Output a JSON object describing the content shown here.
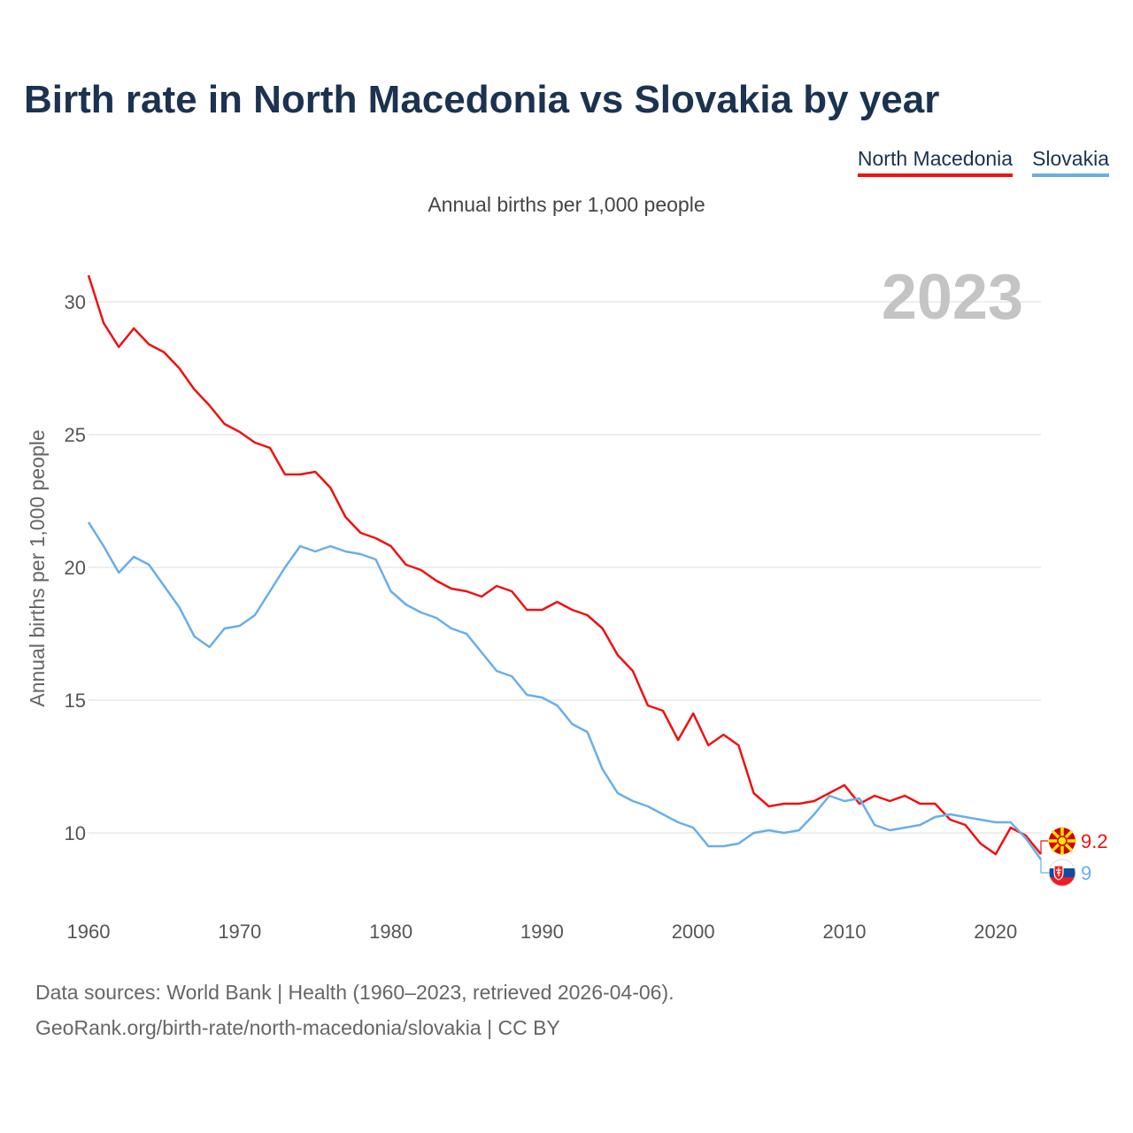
{
  "title": "Birth rate in North Macedonia vs Slovakia by year",
  "subtitle": "Annual births per 1,000 people",
  "legend": [
    {
      "name": "North Macedonia",
      "color": "#ee1111"
    },
    {
      "name": "Slovakia",
      "color": "#6aaee8"
    }
  ],
  "source": {
    "line1": "Data sources: World Bank | Health (1960–2023, retrieved 2026-04-06).",
    "line2": "GeoRank.org/birth-rate/north-macedonia/slovakia | CC BY"
  },
  "chart_data": {
    "type": "line",
    "title": "Birth rate in North Macedonia vs Slovakia by year",
    "ylabel": "Annual births per 1,000 people",
    "xlabel": "",
    "year_watermark": "2023",
    "xlim": [
      1960,
      2023
    ],
    "ylim": [
      8,
      31
    ],
    "x_ticks": [
      1960,
      1970,
      1980,
      1990,
      2000,
      2010,
      2020
    ],
    "y_ticks": [
      10,
      15,
      20,
      25,
      30
    ],
    "grid": true,
    "legend_position": "top-right",
    "x": [
      1960,
      1961,
      1962,
      1963,
      1964,
      1965,
      1966,
      1967,
      1968,
      1969,
      1970,
      1971,
      1972,
      1973,
      1974,
      1975,
      1976,
      1977,
      1978,
      1979,
      1980,
      1981,
      1982,
      1983,
      1984,
      1985,
      1986,
      1987,
      1988,
      1989,
      1990,
      1991,
      1992,
      1993,
      1994,
      1995,
      1996,
      1997,
      1998,
      1999,
      2000,
      2001,
      2002,
      2003,
      2004,
      2005,
      2006,
      2007,
      2008,
      2009,
      2010,
      2011,
      2012,
      2013,
      2014,
      2015,
      2016,
      2017,
      2018,
      2019,
      2020,
      2021,
      2022,
      2023
    ],
    "series": [
      {
        "name": "North Macedonia",
        "color": "#ee1111",
        "end_label": "9.2",
        "values": [
          31.0,
          29.2,
          28.3,
          29.0,
          28.4,
          28.1,
          27.5,
          26.7,
          26.1,
          25.4,
          25.1,
          24.7,
          24.5,
          23.5,
          23.5,
          23.6,
          23.0,
          21.9,
          21.3,
          21.1,
          20.8,
          20.1,
          19.9,
          19.5,
          19.2,
          19.1,
          18.9,
          19.3,
          19.1,
          18.4,
          18.4,
          18.7,
          18.4,
          18.2,
          17.7,
          16.7,
          16.1,
          14.8,
          14.6,
          13.5,
          14.5,
          13.3,
          13.7,
          13.3,
          11.5,
          11.0,
          11.1,
          11.1,
          11.2,
          11.5,
          11.8,
          11.1,
          11.4,
          11.2,
          11.4,
          11.1,
          11.1,
          10.5,
          10.3,
          9.6,
          9.2,
          10.2,
          9.9,
          9.2
        ]
      },
      {
        "name": "Slovakia",
        "color": "#6aaee8",
        "end_label": "9",
        "values": [
          21.7,
          20.8,
          19.8,
          20.4,
          20.1,
          19.3,
          18.5,
          17.4,
          17.0,
          17.7,
          17.8,
          18.2,
          19.1,
          20.0,
          20.8,
          20.6,
          20.8,
          20.6,
          20.5,
          20.3,
          19.1,
          18.6,
          18.3,
          18.1,
          17.7,
          17.5,
          16.8,
          16.1,
          15.9,
          15.2,
          15.1,
          14.8,
          14.1,
          13.8,
          12.4,
          11.5,
          11.2,
          11.0,
          10.7,
          10.4,
          10.2,
          9.5,
          9.5,
          9.6,
          10.0,
          10.1,
          10.0,
          10.1,
          10.7,
          11.4,
          11.2,
          11.3,
          10.3,
          10.1,
          10.2,
          10.3,
          10.6,
          10.7,
          10.6,
          10.5,
          10.4,
          10.4,
          9.8,
          9.0
        ]
      }
    ]
  }
}
